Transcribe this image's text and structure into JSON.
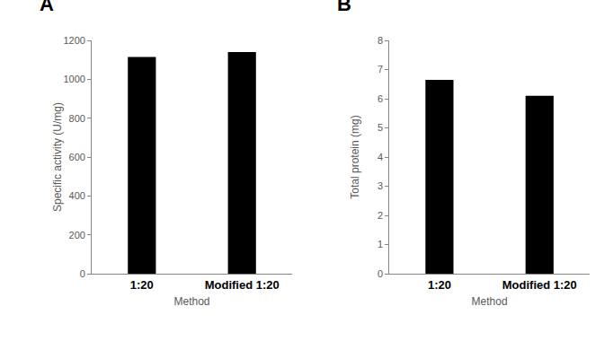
{
  "chart_data": [
    {
      "type": "bar",
      "title": "A",
      "x_label": "Method",
      "y_label": "Specific activity (U/mg)",
      "categories": [
        "1:20",
        "Modified 1:20"
      ],
      "values": [
        1115,
        1140
      ],
      "color": "#000000",
      "ylim": [
        0,
        1200
      ],
      "yticks": [
        0,
        200,
        400,
        600,
        800,
        1000,
        1200
      ],
      "grid": false
    },
    {
      "type": "bar",
      "title": "B",
      "x_label": "Method",
      "y_label": "Total protein (mg)",
      "categories": [
        "1:20",
        "Modified 1:20"
      ],
      "values": [
        6.65,
        6.1
      ],
      "color": "#000000",
      "ylim": [
        0,
        8
      ],
      "yticks": [
        0,
        1,
        2,
        3,
        4,
        5,
        6,
        7,
        8
      ],
      "grid": false
    }
  ]
}
